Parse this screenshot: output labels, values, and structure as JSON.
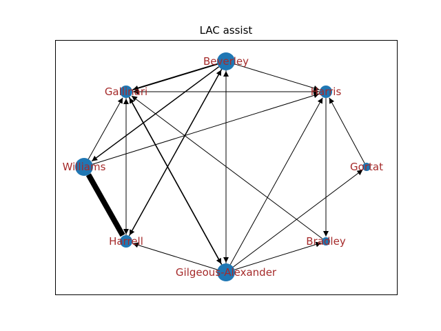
{
  "title": "LAC assist",
  "colors": {
    "node": "#1f77b4",
    "label": "#a52a2a",
    "edge": "#000000",
    "frame": "#000000",
    "background": "#ffffff"
  },
  "nodes": [
    {
      "id": "Beverley",
      "label": "Beverley",
      "size": 3
    },
    {
      "id": "Harris",
      "label": "Harris",
      "size": 2
    },
    {
      "id": "Gortat",
      "label": "Gortat",
      "size": 1
    },
    {
      "id": "Bradley",
      "label": "Bradley",
      "size": 1
    },
    {
      "id": "Gilgeous-Alexander",
      "label": "Gilgeous-Alexander",
      "size": 3
    },
    {
      "id": "Harrell",
      "label": "Harrell",
      "size": 2
    },
    {
      "id": "Williams",
      "label": "Williams",
      "size": 3
    },
    {
      "id": "Gallinari",
      "label": "Gallinari",
      "size": 2
    }
  ],
  "edges": [
    {
      "source": "Williams",
      "target": "Harrell",
      "weight": 8
    },
    {
      "source": "Beverley",
      "target": "Gallinari",
      "weight": 2
    },
    {
      "source": "Beverley",
      "target": "Harris",
      "weight": 1
    },
    {
      "source": "Beverley",
      "target": "Gilgeous-Alexander",
      "weight": 1
    },
    {
      "source": "Beverley",
      "target": "Harrell",
      "weight": 1.5
    },
    {
      "source": "Beverley",
      "target": "Williams",
      "weight": 1.5
    },
    {
      "source": "Gallinari",
      "target": "Harris",
      "weight": 1
    },
    {
      "source": "Gallinari",
      "target": "Harrell",
      "weight": 1
    },
    {
      "source": "Gallinari",
      "target": "Gilgeous-Alexander",
      "weight": 1.5
    },
    {
      "source": "Harris",
      "target": "Gallinari",
      "weight": 1
    },
    {
      "source": "Harris",
      "target": "Bradley",
      "weight": 1
    },
    {
      "source": "Williams",
      "target": "Gallinari",
      "weight": 1
    },
    {
      "source": "Williams",
      "target": "Harris",
      "weight": 1
    },
    {
      "source": "Harrell",
      "target": "Gallinari",
      "weight": 1
    },
    {
      "source": "Harrell",
      "target": "Beverley",
      "weight": 1
    },
    {
      "source": "Bradley",
      "target": "Gallinari",
      "weight": 1
    },
    {
      "source": "Gortat",
      "target": "Harris",
      "weight": 1
    },
    {
      "source": "Gilgeous-Alexander",
      "target": "Harrell",
      "weight": 1
    },
    {
      "source": "Gilgeous-Alexander",
      "target": "Bradley",
      "weight": 1
    },
    {
      "source": "Gilgeous-Alexander",
      "target": "Gortat",
      "weight": 1
    },
    {
      "source": "Gilgeous-Alexander",
      "target": "Harris",
      "weight": 1
    },
    {
      "source": "Gilgeous-Alexander",
      "target": "Gallinari",
      "weight": 1.5
    },
    {
      "source": "Gilgeous-Alexander",
      "target": "Beverley",
      "weight": 1
    }
  ]
}
